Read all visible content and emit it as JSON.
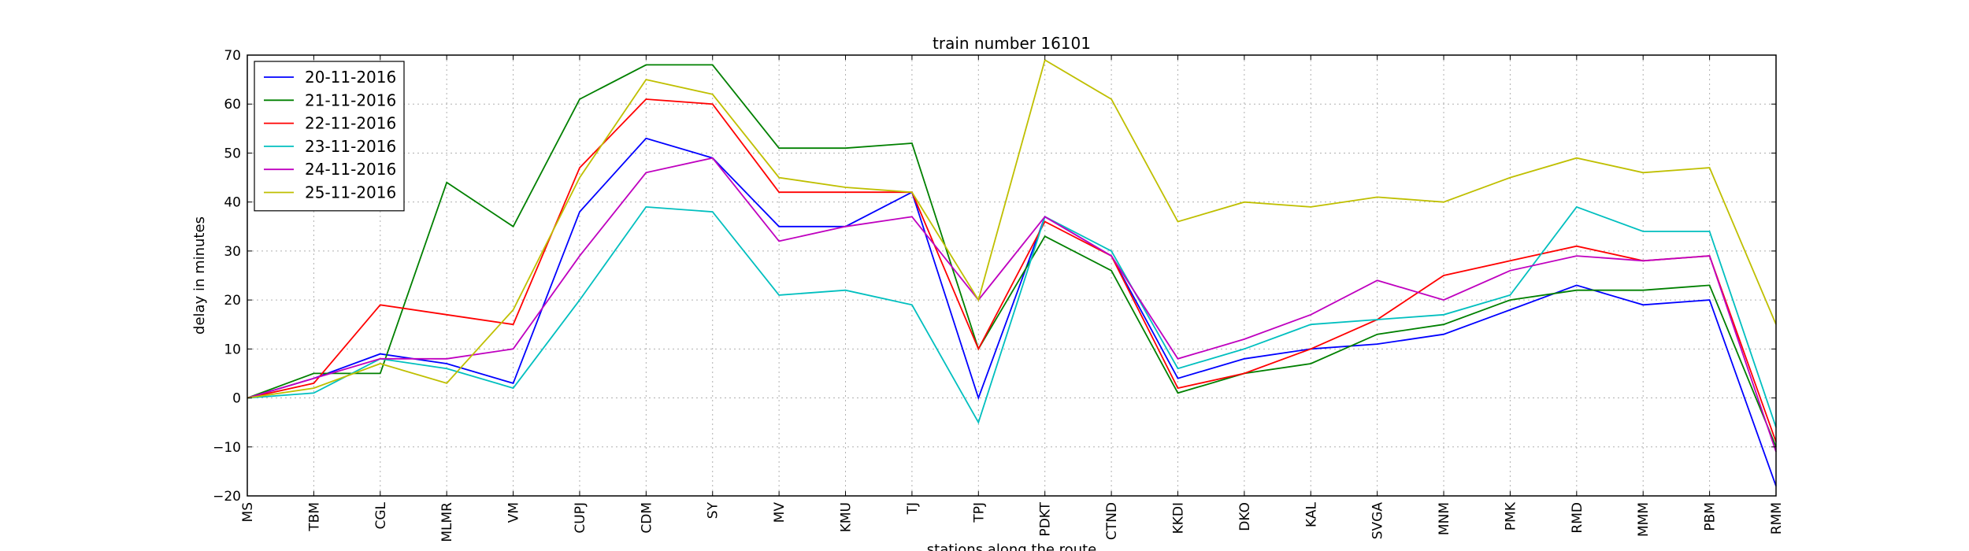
{
  "chart_data": {
    "type": "line",
    "title": "train number 16101",
    "xlabel": "stations along the route",
    "ylabel": "delay in minutes",
    "ylim": [
      -20,
      70
    ],
    "yticks": [
      -20,
      -10,
      0,
      10,
      20,
      30,
      40,
      50,
      60,
      70
    ],
    "grid": true,
    "legend_position": "top-left",
    "categories": [
      "MS",
      "TBM",
      "CGL",
      "MLMR",
      "VM",
      "CUPJ",
      "CDM",
      "SY",
      "MV",
      "KMU",
      "TJ",
      "TPJ",
      "PDKT",
      "CTND",
      "KKDI",
      "DKO",
      "KAL",
      "SVGA",
      "MNM",
      "PMK",
      "RMD",
      "MMM",
      "PBM",
      "RMM"
    ],
    "series": [
      {
        "name": "20-11-2016",
        "color": "#0000ff",
        "values": [
          0,
          4,
          9,
          7,
          3,
          38,
          53,
          49,
          35,
          35,
          42,
          0,
          37,
          29,
          4,
          8,
          10,
          11,
          13,
          18,
          23,
          19,
          20,
          -18
        ]
      },
      {
        "name": "21-11-2016",
        "color": "#008000",
        "values": [
          0,
          5,
          5,
          44,
          35,
          61,
          68,
          68,
          51,
          51,
          52,
          10,
          33,
          26,
          1,
          5,
          7,
          13,
          15,
          20,
          22,
          22,
          23,
          -10
        ]
      },
      {
        "name": "22-11-2016",
        "color": "#ff0000",
        "values": [
          0,
          3,
          19,
          17,
          15,
          47,
          61,
          60,
          42,
          42,
          42,
          10,
          36,
          29,
          2,
          5,
          10,
          16,
          25,
          28,
          31,
          28,
          29,
          -9
        ]
      },
      {
        "name": "23-11-2016",
        "color": "#00bfbf",
        "values": [
          0,
          1,
          8,
          6,
          2,
          20,
          39,
          38,
          21,
          22,
          19,
          -5,
          37,
          30,
          6,
          10,
          15,
          16,
          17,
          21,
          39,
          34,
          34,
          -6
        ]
      },
      {
        "name": "24-11-2016",
        "color": "#bf00bf",
        "values": [
          0,
          4,
          8,
          8,
          10,
          29,
          46,
          49,
          32,
          35,
          37,
          20,
          37,
          29,
          8,
          12,
          17,
          24,
          20,
          26,
          29,
          28,
          29,
          -11
        ]
      },
      {
        "name": "25-11-2016",
        "color": "#bfbf00",
        "values": [
          0,
          2,
          7,
          3,
          18,
          45,
          65,
          62,
          45,
          43,
          42,
          20,
          69,
          61,
          36,
          40,
          39,
          41,
          40,
          45,
          49,
          46,
          47,
          15
        ]
      }
    ]
  }
}
